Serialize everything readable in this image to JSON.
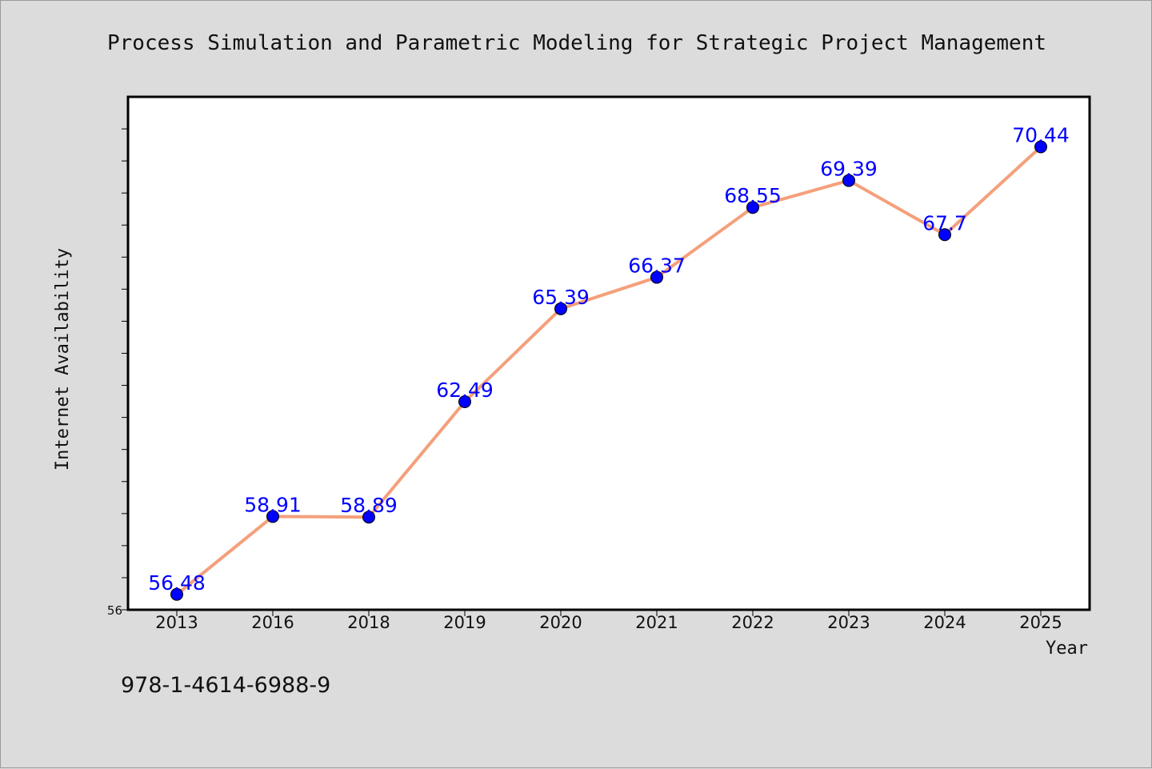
{
  "chart_data": {
    "type": "line",
    "title": "Process Simulation and Parametric Modeling for Strategic Project Management",
    "xlabel": "Year",
    "ylabel": "Internet Availability",
    "categories": [
      "2013",
      "2016",
      "2018",
      "2019",
      "2020",
      "2021",
      "2022",
      "2023",
      "2024",
      "2025"
    ],
    "series": [
      {
        "values": [
          56.48,
          58.91,
          58.89,
          62.49,
          65.39,
          66.37,
          68.55,
          69.39,
          67.7,
          70.44
        ],
        "labels": [
          "56.48",
          "58.91",
          "58.89",
          "62.49",
          "65.39",
          "66.37",
          "68.55",
          "69.39",
          "67.7",
          "70.44"
        ],
        "line_color": "#f4a07c",
        "marker_color": "#0000ff"
      }
    ],
    "ylim": [
      56,
      72
    ],
    "yticks": [
      56
    ],
    "grid": false,
    "legend": "none"
  },
  "footer": {
    "isbn": "978-1-4614-6988-9"
  },
  "colors": {
    "background": "#dcdcdc",
    "plot_background": "#ffffff",
    "line": "#f4a07c",
    "marker": "#0000ff",
    "data_label": "#0000ff"
  }
}
